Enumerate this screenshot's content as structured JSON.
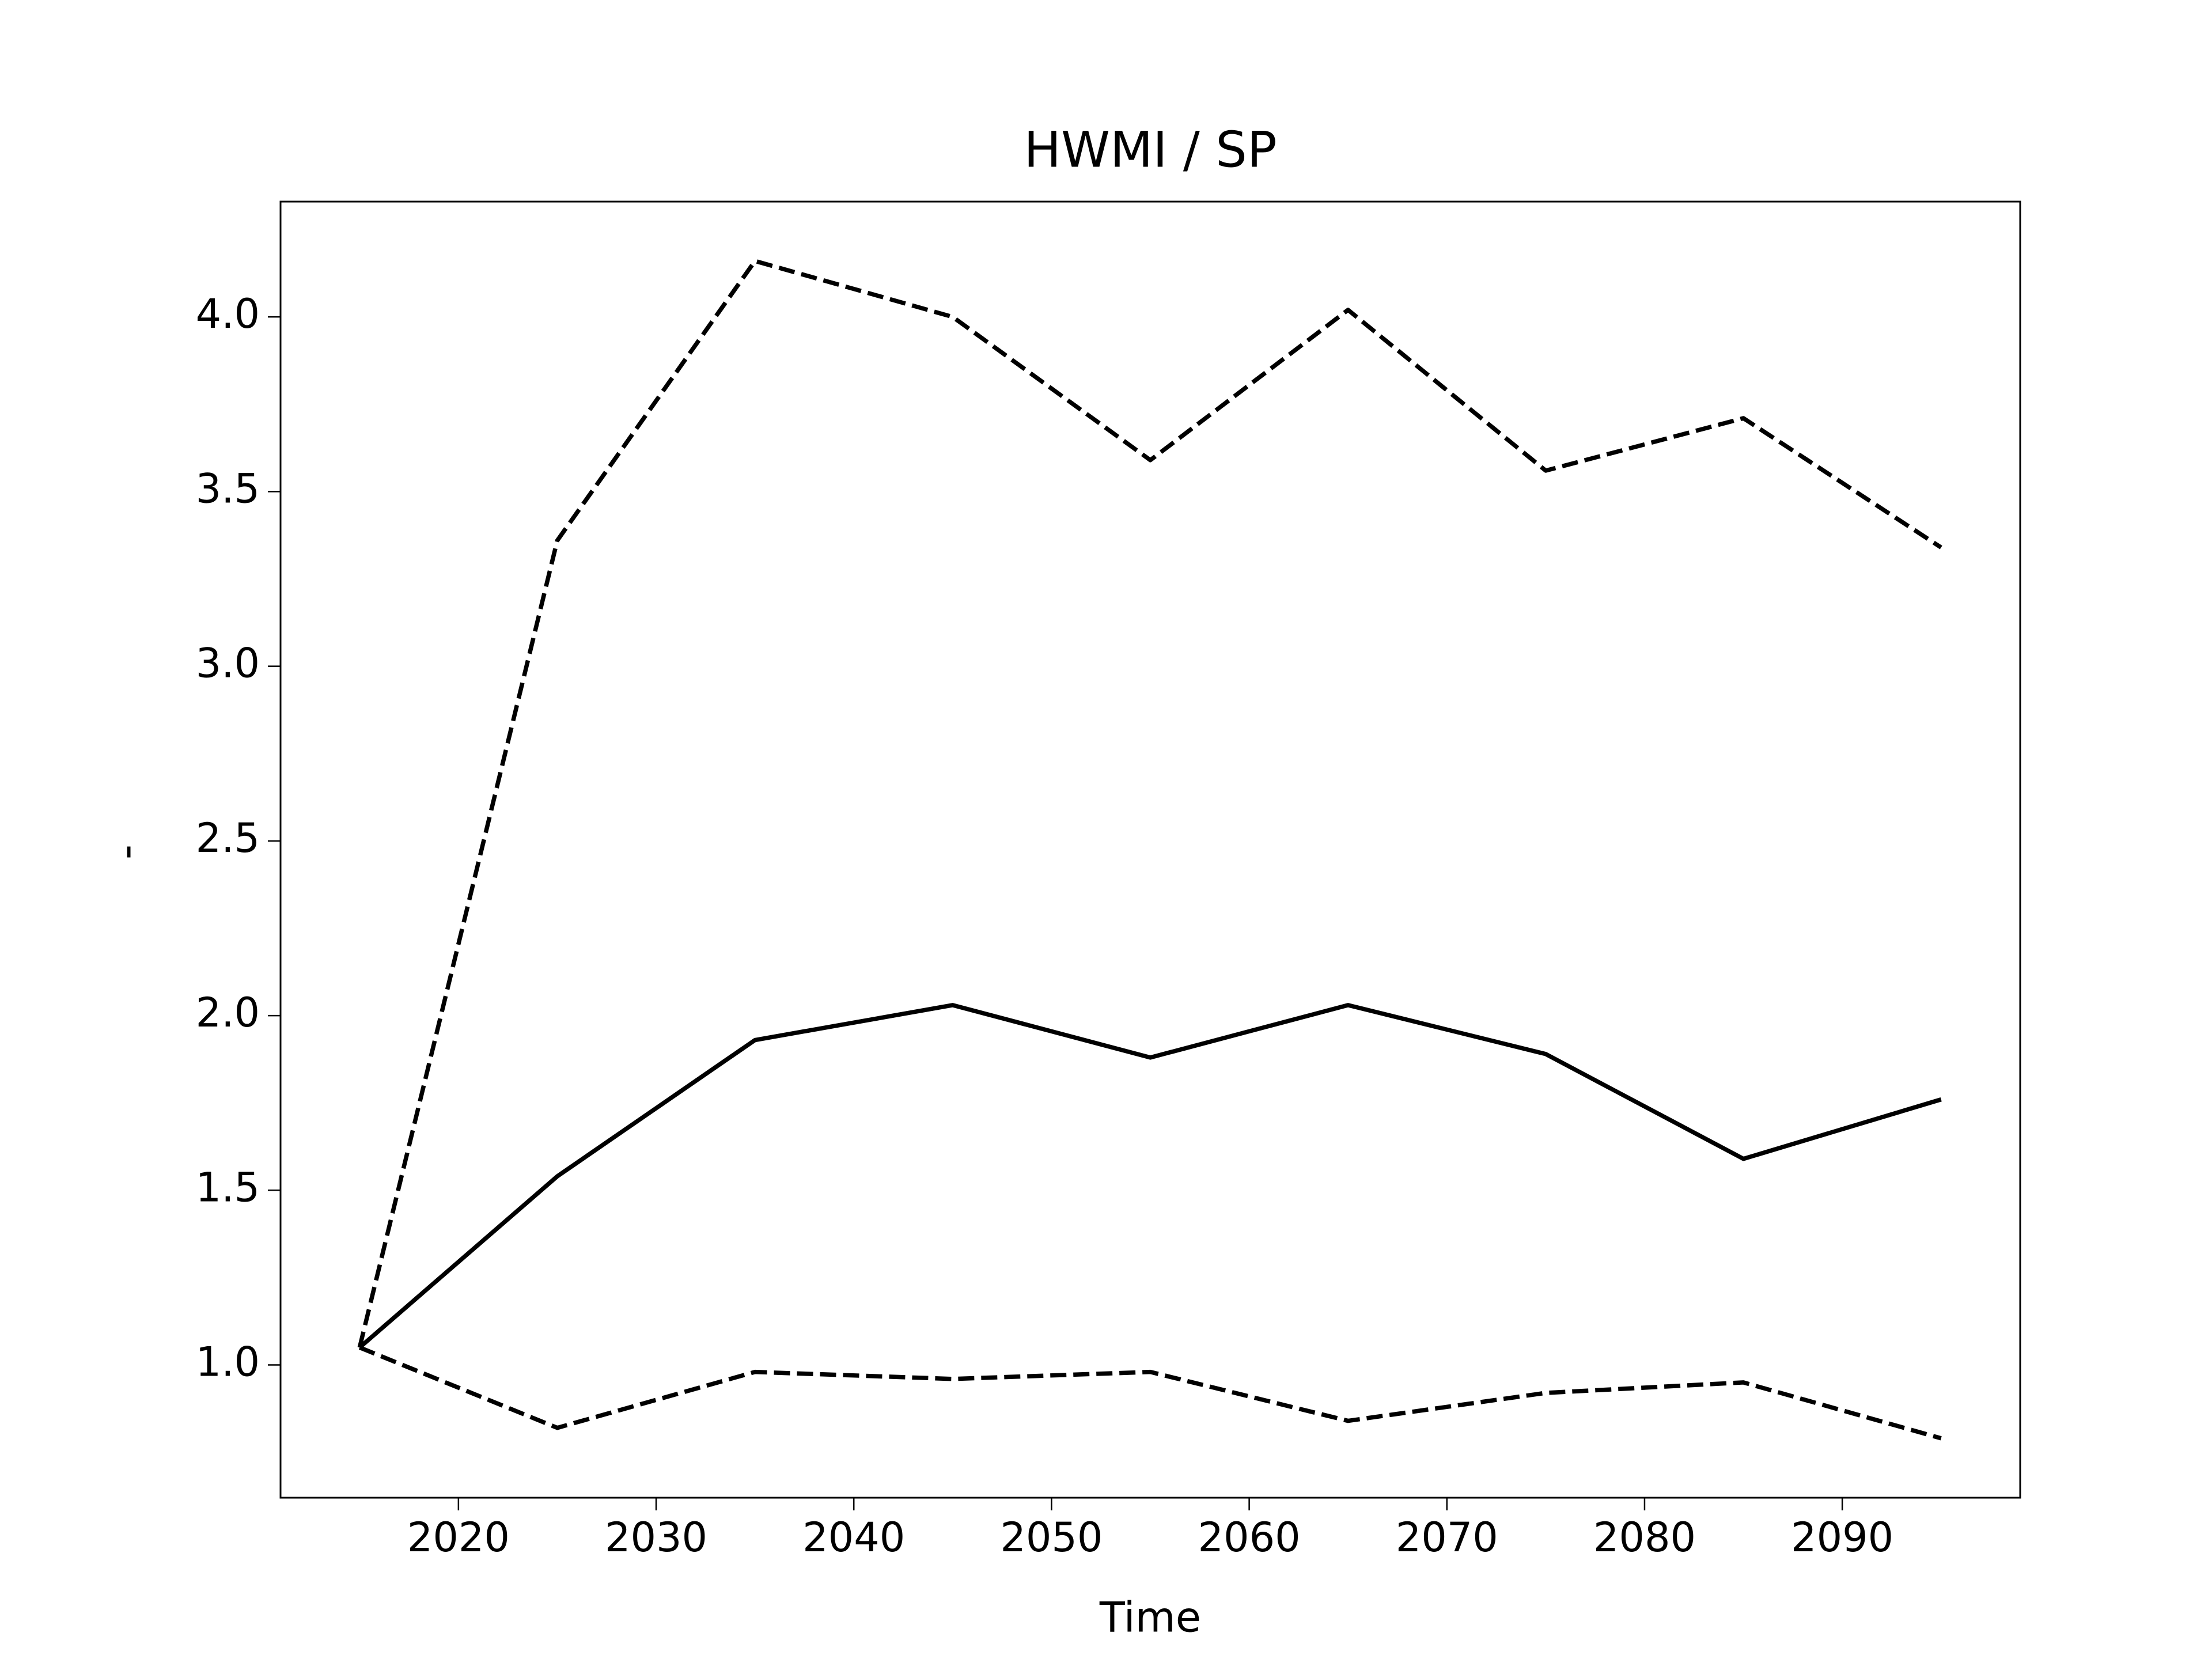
{
  "chart_data": {
    "type": "line",
    "title": "HWMI / SP",
    "xlabel": "Time",
    "ylabel": "-",
    "x": [
      2015,
      2025,
      2035,
      2045,
      2055,
      2065,
      2075,
      2085,
      2095
    ],
    "series": [
      {
        "color": "#000000",
        "linestyle": "solid",
        "values": [
          1.05,
          1.54,
          1.93,
          2.03,
          1.88,
          2.03,
          1.89,
          1.59,
          1.76
        ]
      },
      {
        "color": "#000000",
        "linestyle": "dashed",
        "values": [
          1.05,
          3.36,
          4.16,
          4.0,
          3.59,
          4.02,
          3.56,
          3.71,
          3.34
        ]
      },
      {
        "color": "#000000",
        "linestyle": "dashed",
        "values": [
          1.05,
          0.82,
          0.98,
          0.96,
          0.98,
          0.84,
          0.92,
          0.95,
          0.79
        ]
      }
    ],
    "xlim": [
      2011,
      2099
    ],
    "ylim": [
      0.62,
      4.33
    ],
    "xticks": [
      2020,
      2030,
      2040,
      2050,
      2060,
      2070,
      2080,
      2090
    ],
    "yticks": [
      {
        "value": 1,
        "label": "1.0"
      },
      1.5,
      {
        "value": 2,
        "label": "2.0"
      },
      2.5,
      {
        "value": 3,
        "label": "3.0"
      },
      3.5,
      {
        "value": 4,
        "label": "4.0"
      }
    ],
    "grid": false
  }
}
